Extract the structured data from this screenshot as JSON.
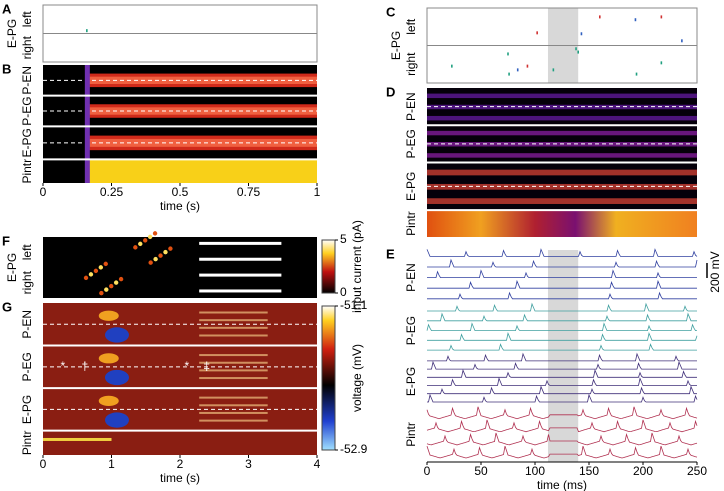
{
  "chart_data": [
    {
      "panel": "A",
      "type": "raster",
      "group_label": "E-PG",
      "row_labels": [
        "left",
        "right"
      ],
      "xlim": [
        0,
        1
      ],
      "ylim": [
        0,
        1
      ],
      "spikes": {
        "x": [
          0.16
        ],
        "y": [
          0.45
        ]
      },
      "colors": [
        "#20a080"
      ]
    },
    {
      "panel": "B",
      "type": "heatmap",
      "row_labels": [
        "P-EN",
        "P-EG",
        "E-PG",
        "Pintr"
      ],
      "xlim": [
        0,
        1
      ],
      "xticks": [
        0,
        0.25,
        0.5,
        0.75,
        1
      ],
      "xlabel": "time (s)"
    },
    {
      "panel": "C",
      "type": "raster",
      "group_label": "E-PG",
      "row_labels": [
        "left",
        "right"
      ],
      "xlim": [
        0,
        250
      ],
      "ylim": [
        0,
        16
      ],
      "highlight": [
        112,
        140
      ],
      "spikes": {
        "x": [
          160,
          193,
          217,
          102,
          143,
          236,
          138,
          140,
          75,
          93,
          84,
          23,
          76,
          117,
          217,
          194
        ],
        "y": [
          1.9,
          2.5,
          1.9,
          5.3,
          5.5,
          7.0,
          8.7,
          9.4,
          9.8,
          12.4,
          13.2,
          12.4,
          14.1,
          13.2,
          11.7,
          14.1
        ]
      },
      "colors": [
        "#d03030",
        "#3060c0",
        "#d03030",
        "#d03030",
        "#3060c0",
        "#3060c0",
        "#20a080",
        "#20a080",
        "#20a080",
        "#d03030",
        "#3060c0",
        "#20a080",
        "#20a080",
        "#20a080",
        "#20a080",
        "#20a080"
      ]
    },
    {
      "panel": "D",
      "type": "heatmap",
      "row_labels": [
        "P-EN",
        "P-EG",
        "E-PG",
        "Pintr"
      ],
      "xlim": [
        0,
        250
      ]
    },
    {
      "panel": "E",
      "type": "traces",
      "row_labels": [
        "P-EN",
        "P-EG",
        "E-PG",
        "Pintr"
      ],
      "colors": [
        "#3040a0",
        "#40a0a0",
        "#40307a",
        "#b03050"
      ],
      "xlim": [
        0,
        250
      ],
      "xticks": [
        0,
        50,
        100,
        150,
        200,
        250
      ],
      "xlabel": "time (ms)",
      "highlight": [
        112,
        140
      ],
      "scalebar_label": "200 mV"
    },
    {
      "panel": "F",
      "type": "heatmap",
      "group_label": "E-PG",
      "row_labels": [
        "left",
        "right"
      ],
      "colorbar": {
        "label": "input current (pA)",
        "ticks": [
          0,
          5
        ]
      }
    },
    {
      "panel": "G",
      "type": "heatmap",
      "row_labels": [
        "P-EN",
        "P-EG",
        "E-PG",
        "Pintr"
      ],
      "xlim": [
        0,
        4
      ],
      "xticks": [
        0,
        1,
        2,
        3,
        4
      ],
      "xlabel": "time (s)",
      "annotations": [
        "*",
        "†",
        "*",
        "‡"
      ],
      "colorbar": {
        "label": "voltage (mV)",
        "ticks": [
          -52.9,
          -51.1
        ]
      }
    }
  ]
}
